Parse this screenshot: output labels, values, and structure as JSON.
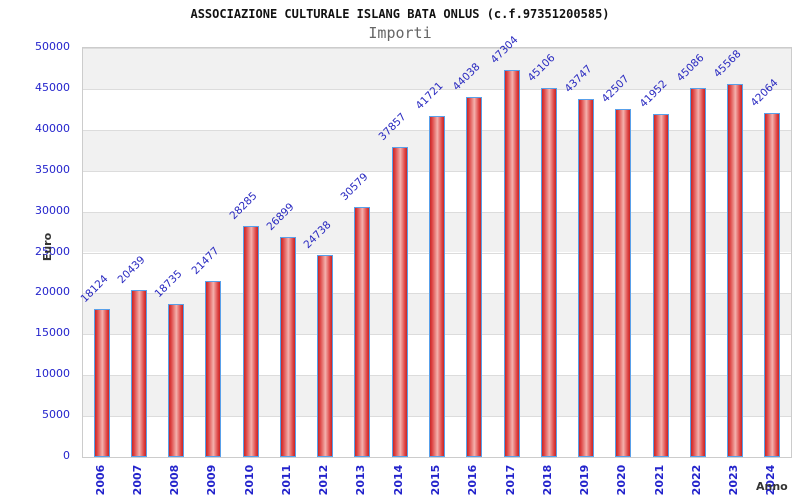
{
  "chart_data": {
    "type": "bar",
    "title": "ASSOCIAZIONE CULTURALE ISLANG BATA ONLUS (c.f.97351200585)",
    "subtitle": "Importi",
    "xlabel": "Anno",
    "ylabel": "Euro",
    "categories": [
      "2006",
      "2007",
      "2008",
      "2009",
      "2010",
      "2011",
      "2012",
      "2013",
      "2014",
      "2015",
      "2016",
      "2017",
      "2018",
      "2019",
      "2020",
      "2021",
      "2022",
      "2023",
      "2024"
    ],
    "values": [
      18124,
      20439,
      18735,
      21477,
      28285,
      26899,
      24738,
      30579,
      37857,
      41721,
      44038,
      47304,
      45106,
      43747,
      42507,
      41952,
      45086,
      45568,
      42064
    ],
    "ylim": [
      0,
      50000
    ],
    "ytick_step": 5000,
    "ytick_labels": [
      "0",
      "5000",
      "10000",
      "15000",
      "20000",
      "25000",
      "30000",
      "35000",
      "40000",
      "45000",
      "50000"
    ],
    "legend": "none",
    "grid": "horizontal-gridlines-with-alternating-bands",
    "bar_value_labels_rotation_deg": -45,
    "x_tick_labels_rotation_deg": -90,
    "colors": {
      "bar_fill_edge": "#c62828",
      "bar_fill_center": "#f4b2ae",
      "bar_border": "#58a0ea",
      "tick_label_blue": "#2424cc",
      "value_label_blue": "#2828c0",
      "band_gray": "#f1f1f1",
      "band_white": "#ffffff",
      "gridline": "#dcdcdc",
      "title_color": "#111111",
      "subtitle_color": "#666666",
      "axis_title_color": "#333333"
    }
  }
}
